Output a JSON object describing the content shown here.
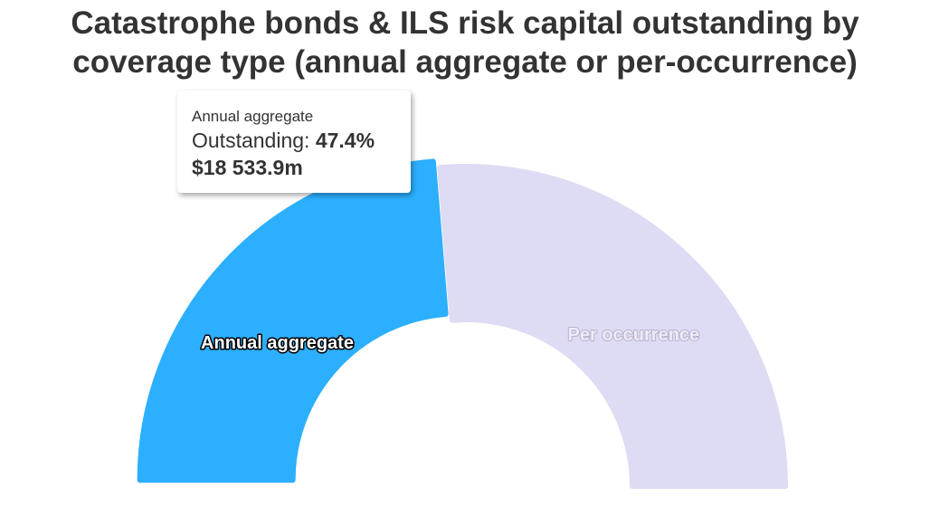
{
  "chart_data": {
    "type": "pie",
    "variant": "semi-circle donut",
    "title": "Catastrophe bonds & ILS risk capital outstanding by coverage type (annual aggregate or per-occurrence)",
    "series_name": "Outstanding",
    "slices": [
      {
        "name": "Annual aggregate",
        "percent": 47.4,
        "color": "#2caffe",
        "sliced": true
      },
      {
        "name": "Per occurrence",
        "percent": 52.6,
        "color": "#dedcf4",
        "sliced": false
      }
    ],
    "legend": "none"
  },
  "tooltip": {
    "name": "Annual aggregate",
    "label": "Outstanding: ",
    "percent": "47.4%",
    "value": "$18 533.9m"
  }
}
